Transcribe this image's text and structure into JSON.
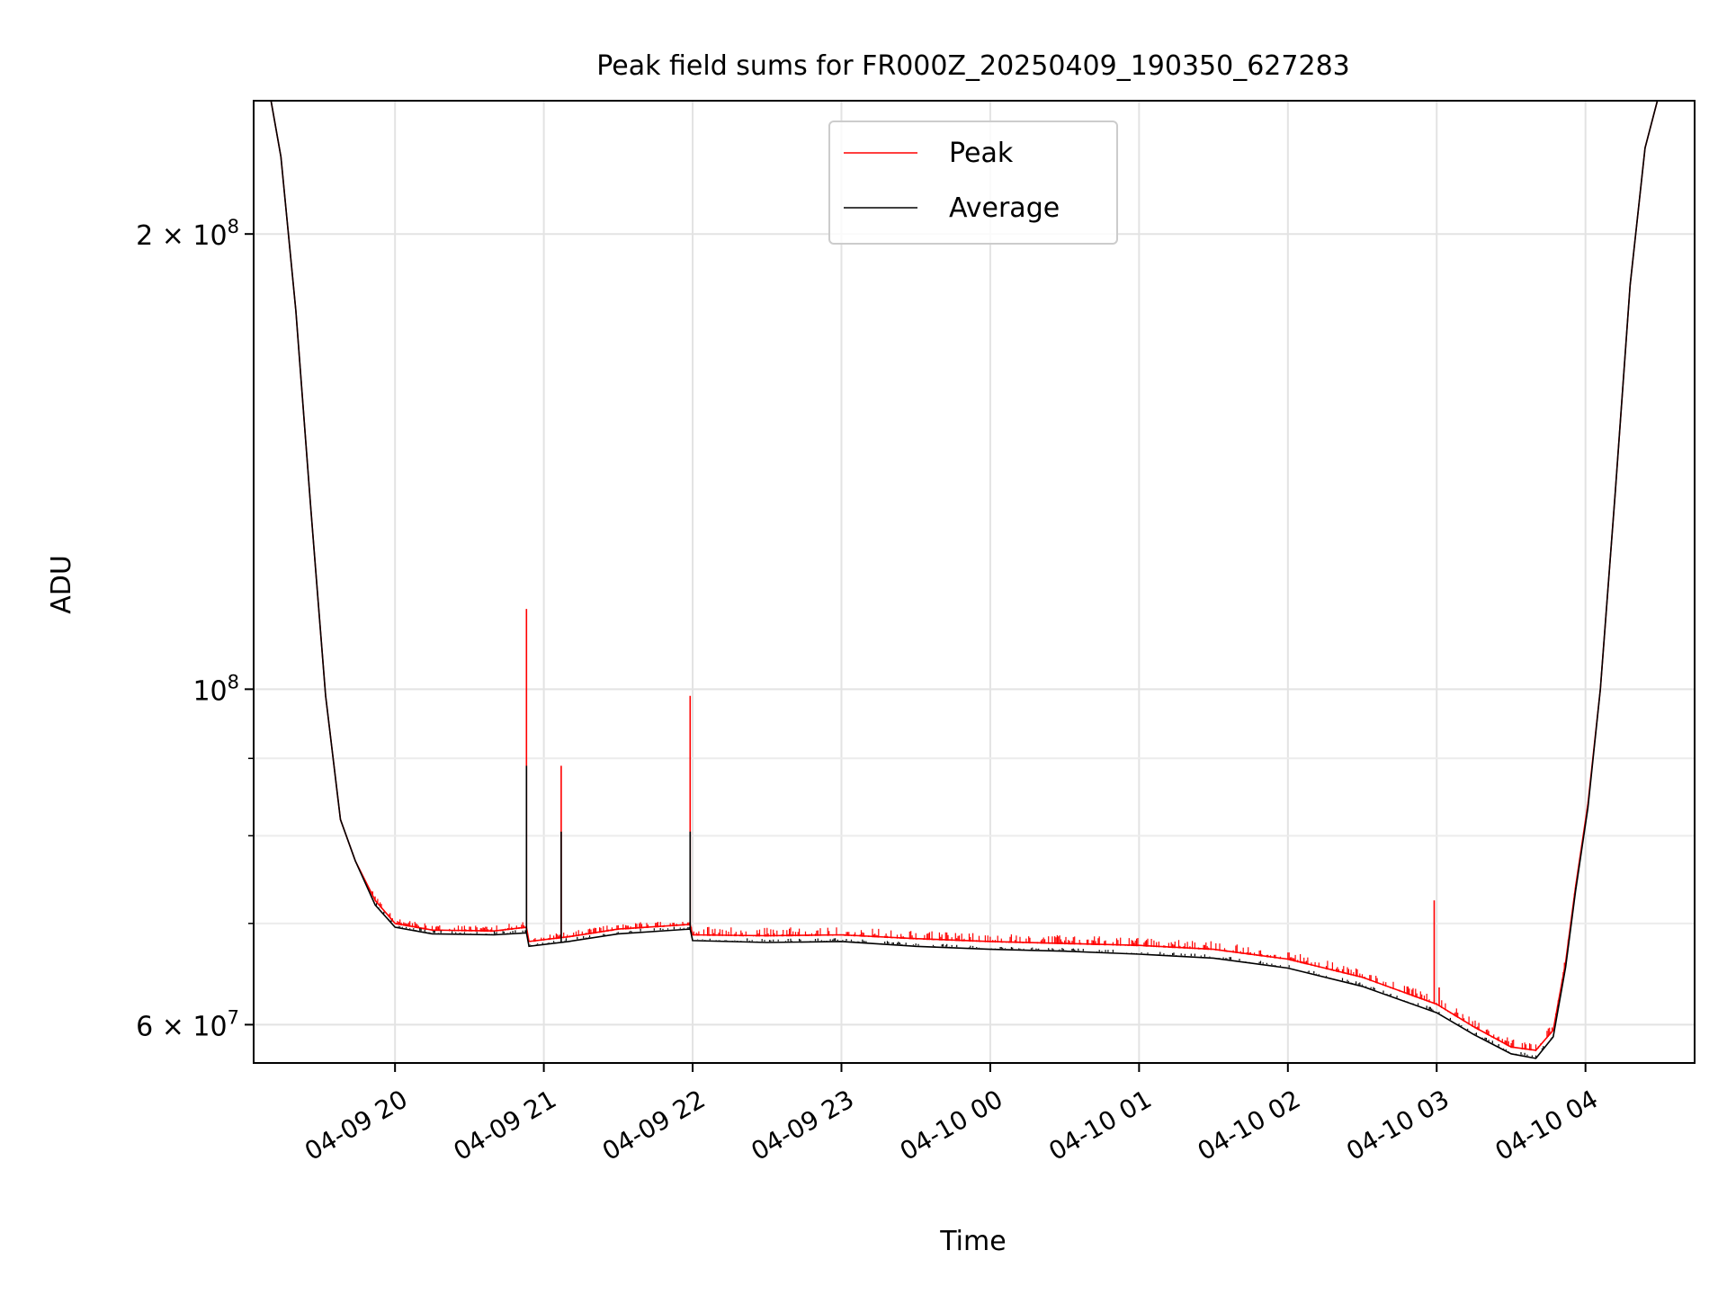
{
  "chart_data": {
    "type": "line",
    "title": "Peak field sums for FR000Z_20250409_190350_627283",
    "xlabel": "Time",
    "ylabel": "ADU",
    "y_scale": "log",
    "ylim": [
      56600000,
      245000000
    ],
    "xlim": [
      "2025-04-09 19:03",
      "2025-04-10 04:44"
    ],
    "grid": true,
    "legend_position": "upper center",
    "x_ticks": [
      {
        "t": "2025-04-09 20:00",
        "label": "04-09 20"
      },
      {
        "t": "2025-04-09 21:00",
        "label": "04-09 21"
      },
      {
        "t": "2025-04-09 22:00",
        "label": "04-09 22"
      },
      {
        "t": "2025-04-09 23:00",
        "label": "04-09 23"
      },
      {
        "t": "2025-04-10 00:00",
        "label": "04-10 00"
      },
      {
        "t": "2025-04-10 01:00",
        "label": "04-10 01"
      },
      {
        "t": "2025-04-10 02:00",
        "label": "04-10 02"
      },
      {
        "t": "2025-04-10 03:00",
        "label": "04-10 03"
      },
      {
        "t": "2025-04-10 04:00",
        "label": "04-10 04"
      }
    ],
    "y_ticks_major": [
      {
        "value": 200000000,
        "mantissa": "2",
        "times": "×",
        "base": "10",
        "exp": "8"
      },
      {
        "value": 100000000,
        "mantissa": "",
        "times": "",
        "base": "10",
        "exp": "8"
      },
      {
        "value": 60000000,
        "mantissa": "6",
        "times": "×",
        "base": "10",
        "exp": "7"
      }
    ],
    "y_ticks_minor": [
      70000000,
      80000000,
      90000000
    ],
    "series": [
      {
        "name": "Peak",
        "color": "#ff0000",
        "points": [
          [
            "2025-04-09 19:03",
            245000000
          ],
          [
            "2025-04-09 19:10",
            245000000
          ],
          [
            "2025-04-09 19:14",
            225000000
          ],
          [
            "2025-04-09 19:20",
            178000000
          ],
          [
            "2025-04-09 19:26",
            132000000
          ],
          [
            "2025-04-09 19:32",
            99000000
          ],
          [
            "2025-04-09 19:38",
            82000000
          ],
          [
            "2025-04-09 19:44",
            77000000
          ],
          [
            "2025-04-09 19:52",
            72500000
          ],
          [
            "2025-04-09 20:00",
            70000000
          ],
          [
            "2025-04-09 20:15",
            69300000
          ],
          [
            "2025-04-09 20:40",
            69200000
          ],
          [
            "2025-04-09 20:53",
            69600000
          ],
          [
            "2025-04-09 20:54",
            68100000
          ],
          [
            "2025-04-09 21:10",
            68600000
          ],
          [
            "2025-04-09 21:30",
            69400000
          ],
          [
            "2025-04-09 21:59",
            69900000
          ],
          [
            "2025-04-09 22:00",
            68800000
          ],
          [
            "2025-04-09 22:30",
            68700000
          ],
          [
            "2025-04-09 23:00",
            68800000
          ],
          [
            "2025-04-09 23:30",
            68400000
          ],
          [
            "2025-04-10 00:00",
            68100000
          ],
          [
            "2025-04-10 00:30",
            67900000
          ],
          [
            "2025-04-10 01:00",
            67700000
          ],
          [
            "2025-04-10 01:30",
            67300000
          ],
          [
            "2025-04-10 02:00",
            66300000
          ],
          [
            "2025-04-10 02:30",
            64500000
          ],
          [
            "2025-04-10 03:00",
            61900000
          ],
          [
            "2025-04-10 03:15",
            59800000
          ],
          [
            "2025-04-10 03:30",
            58000000
          ],
          [
            "2025-04-10 03:40",
            57700000
          ],
          [
            "2025-04-10 03:47",
            59500000
          ],
          [
            "2025-04-10 03:52",
            66000000
          ],
          [
            "2025-04-10 03:56",
            74000000
          ],
          [
            "2025-04-10 04:01",
            84000000
          ],
          [
            "2025-04-10 04:06",
            100000000
          ],
          [
            "2025-04-10 04:12",
            135000000
          ],
          [
            "2025-04-10 04:18",
            185000000
          ],
          [
            "2025-04-10 04:24",
            228000000
          ],
          [
            "2025-04-10 04:29",
            245000000
          ],
          [
            "2025-04-10 04:44",
            245000000
          ]
        ],
        "spikes": [
          [
            "2025-04-09 20:53",
            113000000
          ],
          [
            "2025-04-09 21:07",
            89000000
          ],
          [
            "2025-04-09 21:59",
            99000000
          ],
          [
            "2025-04-10 02:59",
            72500000
          ],
          [
            "2025-04-10 03:01",
            63500000
          ]
        ]
      },
      {
        "name": "Average",
        "color": "#000000",
        "points": [
          [
            "2025-04-09 19:03",
            245000000
          ],
          [
            "2025-04-09 19:10",
            245000000
          ],
          [
            "2025-04-09 19:14",
            225000000
          ],
          [
            "2025-04-09 19:20",
            178000000
          ],
          [
            "2025-04-09 19:26",
            132000000
          ],
          [
            "2025-04-09 19:32",
            99000000
          ],
          [
            "2025-04-09 19:38",
            82000000
          ],
          [
            "2025-04-09 19:44",
            77000000
          ],
          [
            "2025-04-09 19:52",
            72000000
          ],
          [
            "2025-04-09 20:00",
            69600000
          ],
          [
            "2025-04-09 20:15",
            68900000
          ],
          [
            "2025-04-09 20:40",
            68800000
          ],
          [
            "2025-04-09 20:53",
            69000000
          ],
          [
            "2025-04-09 20:54",
            67600000
          ],
          [
            "2025-04-09 21:10",
            68100000
          ],
          [
            "2025-04-09 21:30",
            68900000
          ],
          [
            "2025-04-09 21:59",
            69400000
          ],
          [
            "2025-04-09 22:00",
            68200000
          ],
          [
            "2025-04-09 22:30",
            68000000
          ],
          [
            "2025-04-09 23:00",
            68100000
          ],
          [
            "2025-04-09 23:30",
            67600000
          ],
          [
            "2025-04-10 00:00",
            67300000
          ],
          [
            "2025-04-10 00:30",
            67100000
          ],
          [
            "2025-04-10 01:00",
            66800000
          ],
          [
            "2025-04-10 01:30",
            66400000
          ],
          [
            "2025-04-10 02:00",
            65400000
          ],
          [
            "2025-04-10 02:30",
            63600000
          ],
          [
            "2025-04-10 03:00",
            61100000
          ],
          [
            "2025-04-10 03:15",
            59100000
          ],
          [
            "2025-04-10 03:30",
            57400000
          ],
          [
            "2025-04-10 03:40",
            57000000
          ],
          [
            "2025-04-10 03:47",
            58900000
          ],
          [
            "2025-04-10 03:52",
            65500000
          ],
          [
            "2025-04-10 03:56",
            73500000
          ],
          [
            "2025-04-10 04:01",
            83500000
          ],
          [
            "2025-04-10 04:06",
            100000000
          ],
          [
            "2025-04-10 04:12",
            135000000
          ],
          [
            "2025-04-10 04:18",
            185000000
          ],
          [
            "2025-04-10 04:24",
            228000000
          ],
          [
            "2025-04-10 04:29",
            245000000
          ],
          [
            "2025-04-10 04:44",
            245000000
          ]
        ],
        "spikes": [
          [
            "2025-04-09 20:53",
            89000000
          ],
          [
            "2025-04-09 21:07",
            80500000
          ],
          [
            "2025-04-09 21:59",
            80500000
          ]
        ]
      }
    ]
  }
}
